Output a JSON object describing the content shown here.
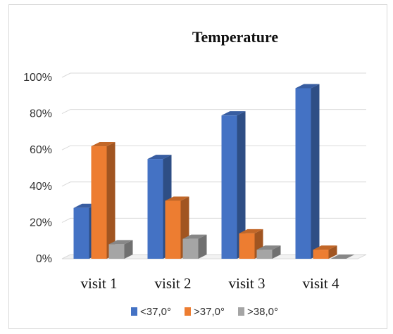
{
  "chart_data": {
    "type": "bar",
    "title": "Temperature",
    "categories": [
      "visit 1",
      "visit 2",
      "visit 3",
      "visit 4"
    ],
    "series": [
      {
        "name": "<37,0°",
        "color": "#4472C4",
        "values": [
          28,
          55,
          79,
          94
        ]
      },
      {
        "name": ">37,0°",
        "color": "#ED7D31",
        "values": [
          62,
          32,
          14,
          5
        ]
      },
      {
        "name": ">38,0°",
        "color": "#A5A5A5",
        "values": [
          8,
          11,
          5,
          0
        ]
      }
    ],
    "yticks": [
      "0%",
      "20%",
      "40%",
      "60%",
      "80%",
      "100%"
    ],
    "ylim": [
      0,
      100
    ],
    "grid": true,
    "legend_position": "bottom",
    "three_d": true
  }
}
